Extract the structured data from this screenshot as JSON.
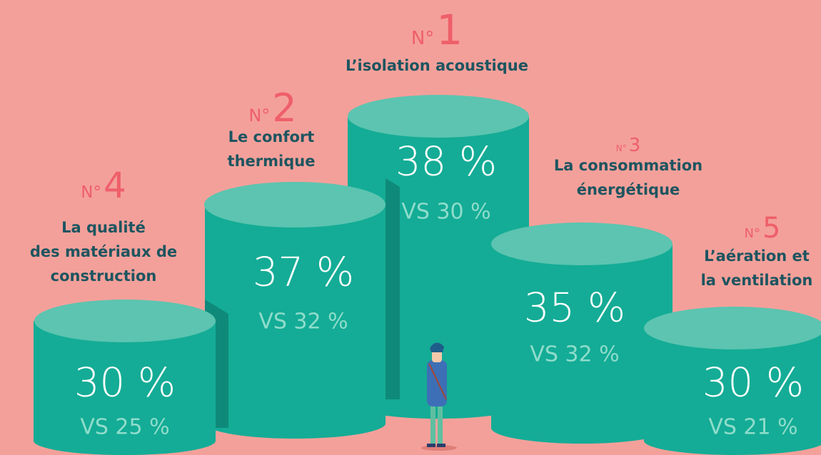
{
  "items": [
    {
      "rank_prefix": "N°",
      "rank": 1,
      "label_lines": [
        "L’isolation acoustique"
      ],
      "value": "38 %",
      "comparison": "VS 30 %"
    },
    {
      "rank_prefix": "N°",
      "rank": 2,
      "label_lines": [
        "Le confort",
        "thermique"
      ],
      "value": "37 %",
      "comparison": "VS 32 %"
    },
    {
      "rank_prefix": "N°",
      "rank": 3,
      "label_lines": [
        "La consommation",
        "énergétique"
      ],
      "value": "35 %",
      "comparison": "VS 32 %"
    },
    {
      "rank_prefix": "N°",
      "rank": 4,
      "label_lines": [
        "La qualité",
        "des matériaux de",
        "construction"
      ],
      "value": "30 %",
      "comparison": "VS 25 %"
    },
    {
      "rank_prefix": "N°",
      "rank": 5,
      "label_lines": [
        "L’aération et",
        "la ventilation"
      ],
      "value": "30 %",
      "comparison": "VS 21 %"
    }
  ]
}
